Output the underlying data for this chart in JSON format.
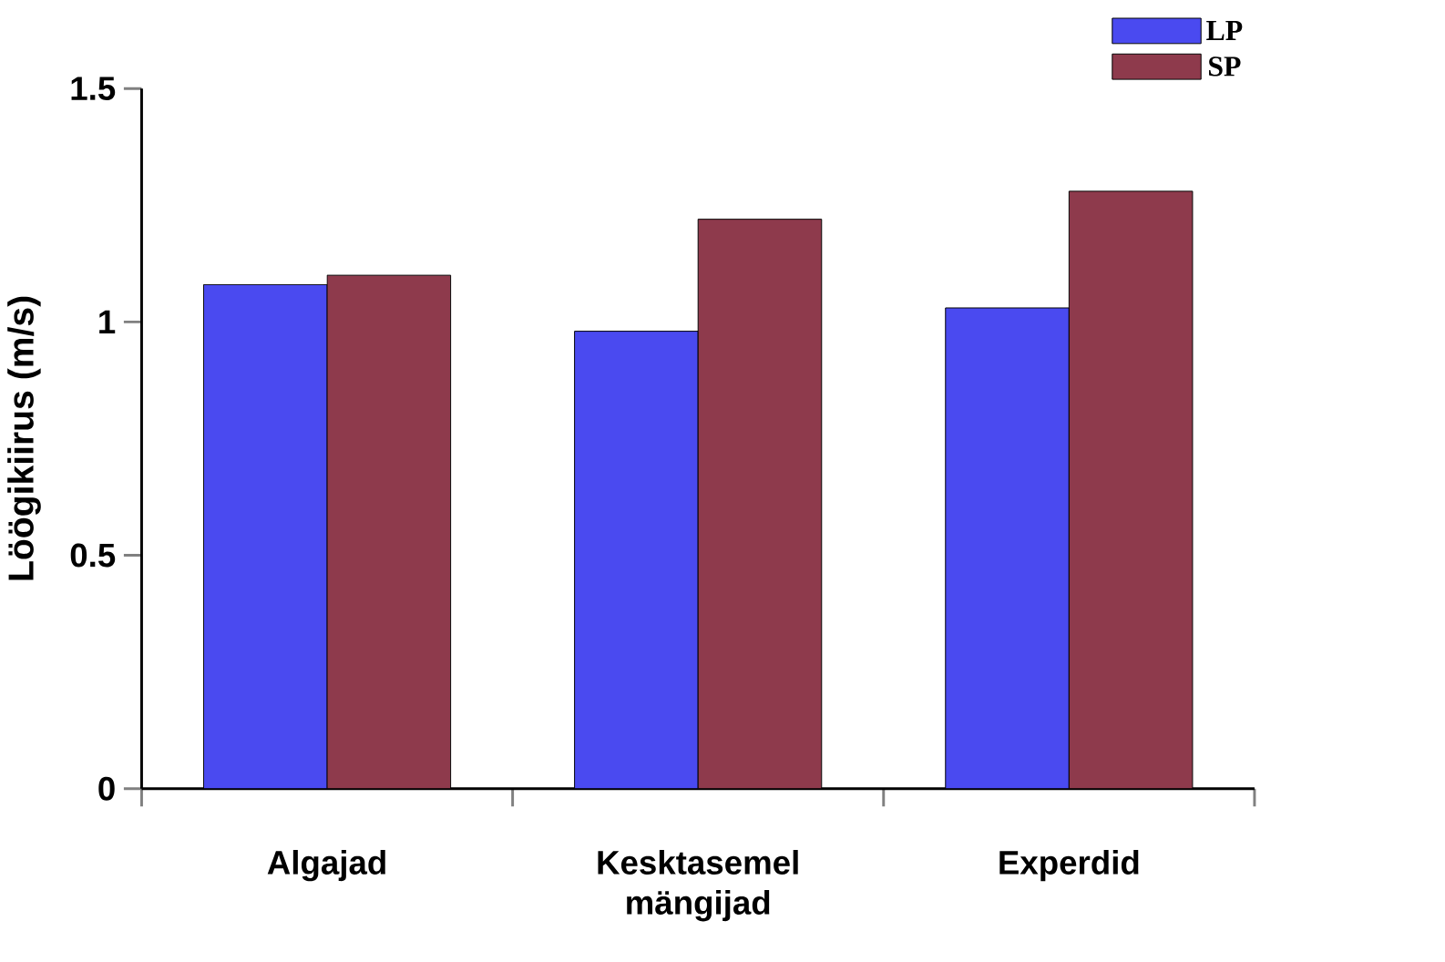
{
  "chart_data": {
    "type": "bar",
    "ylabel": "Löögikiirus (m/s)",
    "categories": [
      "Algajad",
      "Kesktasemel mängijad",
      "Experdid"
    ],
    "series": [
      {
        "name": "LP",
        "color": "#4a4af0",
        "values": [
          1.08,
          0.98,
          1.03
        ]
      },
      {
        "name": "SP",
        "color": "#8e3a4c",
        "values": [
          1.1,
          1.22,
          1.28
        ]
      }
    ],
    "ylim": [
      0,
      1.5
    ],
    "yticks": [
      0,
      0.5,
      1,
      1.5
    ],
    "grid": false,
    "legend": "top right"
  }
}
